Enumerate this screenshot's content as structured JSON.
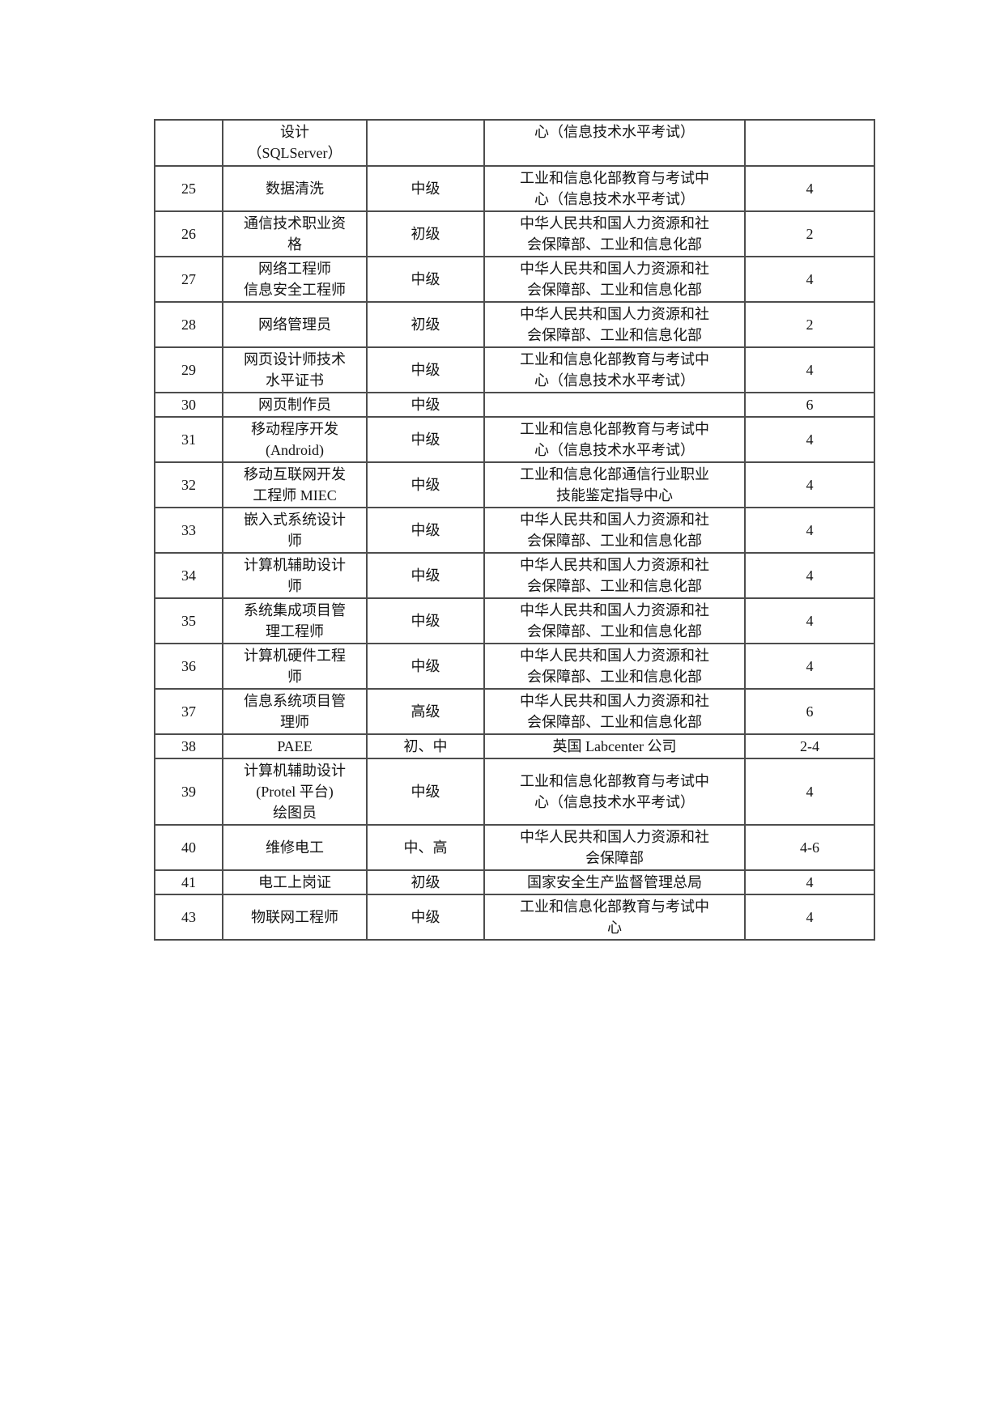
{
  "page": {
    "background_color": "#ffffff",
    "text_color": "#141414",
    "table_border_color": "#4d4d4d"
  },
  "table": {
    "rows": [
      {
        "no": "",
        "name": "设计\n（SQLServer）",
        "level": "",
        "org": "心（信息技术水平考试）",
        "credit": ""
      },
      {
        "no": "25",
        "name": "数据清洗",
        "level": "中级",
        "org": "工业和信息化部教育与考试中\n心（信息技术水平考试）",
        "credit": "4"
      },
      {
        "no": "26",
        "name": "通信技术职业资\n格",
        "level": "初级",
        "org": "中华人民共和国人力资源和社\n会保障部、工业和信息化部",
        "credit": "2"
      },
      {
        "no": "27",
        "name": "网络工程师\n信息安全工程师",
        "level": "中级",
        "org": "中华人民共和国人力资源和社\n会保障部、工业和信息化部",
        "credit": "4"
      },
      {
        "no": "28",
        "name": "网络管理员",
        "level": "初级",
        "org": "中华人民共和国人力资源和社\n会保障部、工业和信息化部",
        "credit": "2"
      },
      {
        "no": "29",
        "name": "网页设计师技术\n水平证书",
        "level": "中级",
        "org": "工业和信息化部教育与考试中\n心（信息技术水平考试）",
        "credit": "4"
      },
      {
        "no": "30",
        "name": "网页制作员",
        "level": "中级",
        "org": "",
        "credit": "6"
      },
      {
        "no": "31",
        "name": "移动程序开发\n(Android)",
        "level": "中级",
        "org": "工业和信息化部教育与考试中\n心（信息技术水平考试）",
        "credit": "4"
      },
      {
        "no": "32",
        "name": "移动互联网开发\n工程师 MIEC",
        "level": "中级",
        "org": "工业和信息化部通信行业职业\n技能鉴定指导中心",
        "credit": "4"
      },
      {
        "no": "33",
        "name": "嵌入式系统设计\n师",
        "level": "中级",
        "org": "中华人民共和国人力资源和社\n会保障部、工业和信息化部",
        "credit": "4"
      },
      {
        "no": "34",
        "name": "计算机辅助设计\n师",
        "level": "中级",
        "org": "中华人民共和国人力资源和社\n会保障部、工业和信息化部",
        "credit": "4"
      },
      {
        "no": "35",
        "name": "系统集成项目管\n理工程师",
        "level": "中级",
        "org": "中华人民共和国人力资源和社\n会保障部、工业和信息化部",
        "credit": "4"
      },
      {
        "no": "36",
        "name": "计算机硬件工程\n师",
        "level": "中级",
        "org": "中华人民共和国人力资源和社\n会保障部、工业和信息化部",
        "credit": "4"
      },
      {
        "no": "37",
        "name": "信息系统项目管\n理师",
        "level": "高级",
        "org": "中华人民共和国人力资源和社\n会保障部、工业和信息化部",
        "credit": "6"
      },
      {
        "no": "38",
        "name": "PAEE",
        "level": "初、中",
        "org": "英国 Labcenter 公司",
        "credit": "2-4"
      },
      {
        "no": "39",
        "name": "计算机辅助设计\n(Protel 平台)\n绘图员",
        "level": "中级",
        "org": "工业和信息化部教育与考试中\n心（信息技术水平考试）",
        "credit": "4"
      },
      {
        "no": "40",
        "name": "维修电工",
        "level": "中、高",
        "org": "中华人民共和国人力资源和社\n会保障部",
        "credit": "4-6"
      },
      {
        "no": "41",
        "name": "电工上岗证",
        "level": "初级",
        "org": "国家安全生产监督管理总局",
        "credit": "4"
      },
      {
        "no": "43",
        "name": "物联网工程师",
        "level": "中级",
        "org": "工业和信息化部教育与考试中\n心",
        "credit": "4"
      }
    ]
  }
}
